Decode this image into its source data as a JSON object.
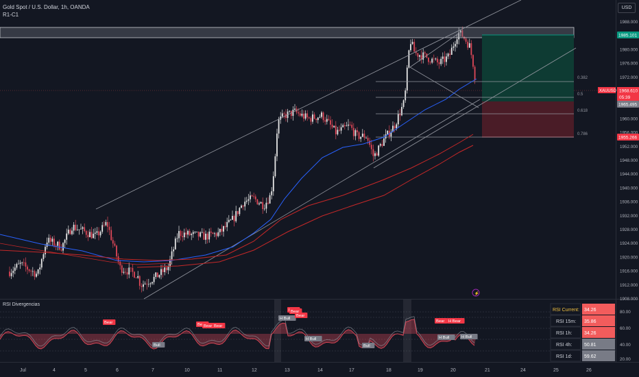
{
  "header": {
    "symbol_title": "Gold Spot / U.S. Dollar, 1h, OANDA",
    "layout_name": "R1-C1",
    "currency": "USD"
  },
  "price_axis": {
    "ticks": [
      "1988.000",
      "1984.000",
      "1980.000",
      "1976.000",
      "1972.000",
      "1968.000",
      "1964.000",
      "1960.000",
      "1956.000",
      "1952.000",
      "1948.000",
      "1944.000",
      "1940.000",
      "1936.000",
      "1932.000",
      "1928.000",
      "1924.000",
      "1920.000",
      "1916.000",
      "1912.000",
      "1908.000"
    ],
    "label_target": "1985.101",
    "label_symbol": "XAUUSD",
    "label_last": "1968.610",
    "label_countdown": "05:39",
    "label_entry": "1965.495",
    "label_stop": "1955.266"
  },
  "fib_levels": [
    "0.382",
    "0.5",
    "0.618",
    "0.786"
  ],
  "time_axis": [
    "Jul",
    "4",
    "5",
    "6",
    "7",
    "10",
    "11",
    "12",
    "13",
    "14",
    "17",
    "18",
    "19",
    "20",
    "21",
    "24",
    "25",
    "26"
  ],
  "rsi_pane": {
    "title": "RSI Divergencias",
    "axis_ticks": [
      "80.00",
      "60.00",
      "40.00",
      "20.00"
    ],
    "labels": [
      "Bear",
      "Bull",
      "Bear",
      "Bear",
      "Bear",
      "H Bull",
      "Bear",
      "Bear",
      "Bear",
      "H Bull",
      "Bull",
      "Bear",
      "H Bear",
      "H Bull",
      "H Bull"
    ],
    "table": [
      {
        "label": "RSI Current:",
        "value": "34.26"
      },
      {
        "label": "RSI 15m:",
        "value": "35.86"
      },
      {
        "label": "RSI 1h:",
        "value": "34.26"
      },
      {
        "label": "RSI 4h:",
        "value": "50.81"
      },
      {
        "label": "RSI 1d:",
        "value": "59.62"
      }
    ]
  },
  "icons": {
    "alert": "lightning-icon"
  },
  "colors": {
    "background": "#131722",
    "up": "#e8e8e8",
    "down": "#e04858",
    "ma_blue": "#2962ff",
    "ma_red": "#c62828",
    "target_zone": "#0e3b33",
    "stop_zone": "#4a1c27",
    "table_red": "#f25c5c",
    "table_gray": "#787b86",
    "label_gold": "#f0c040"
  }
}
